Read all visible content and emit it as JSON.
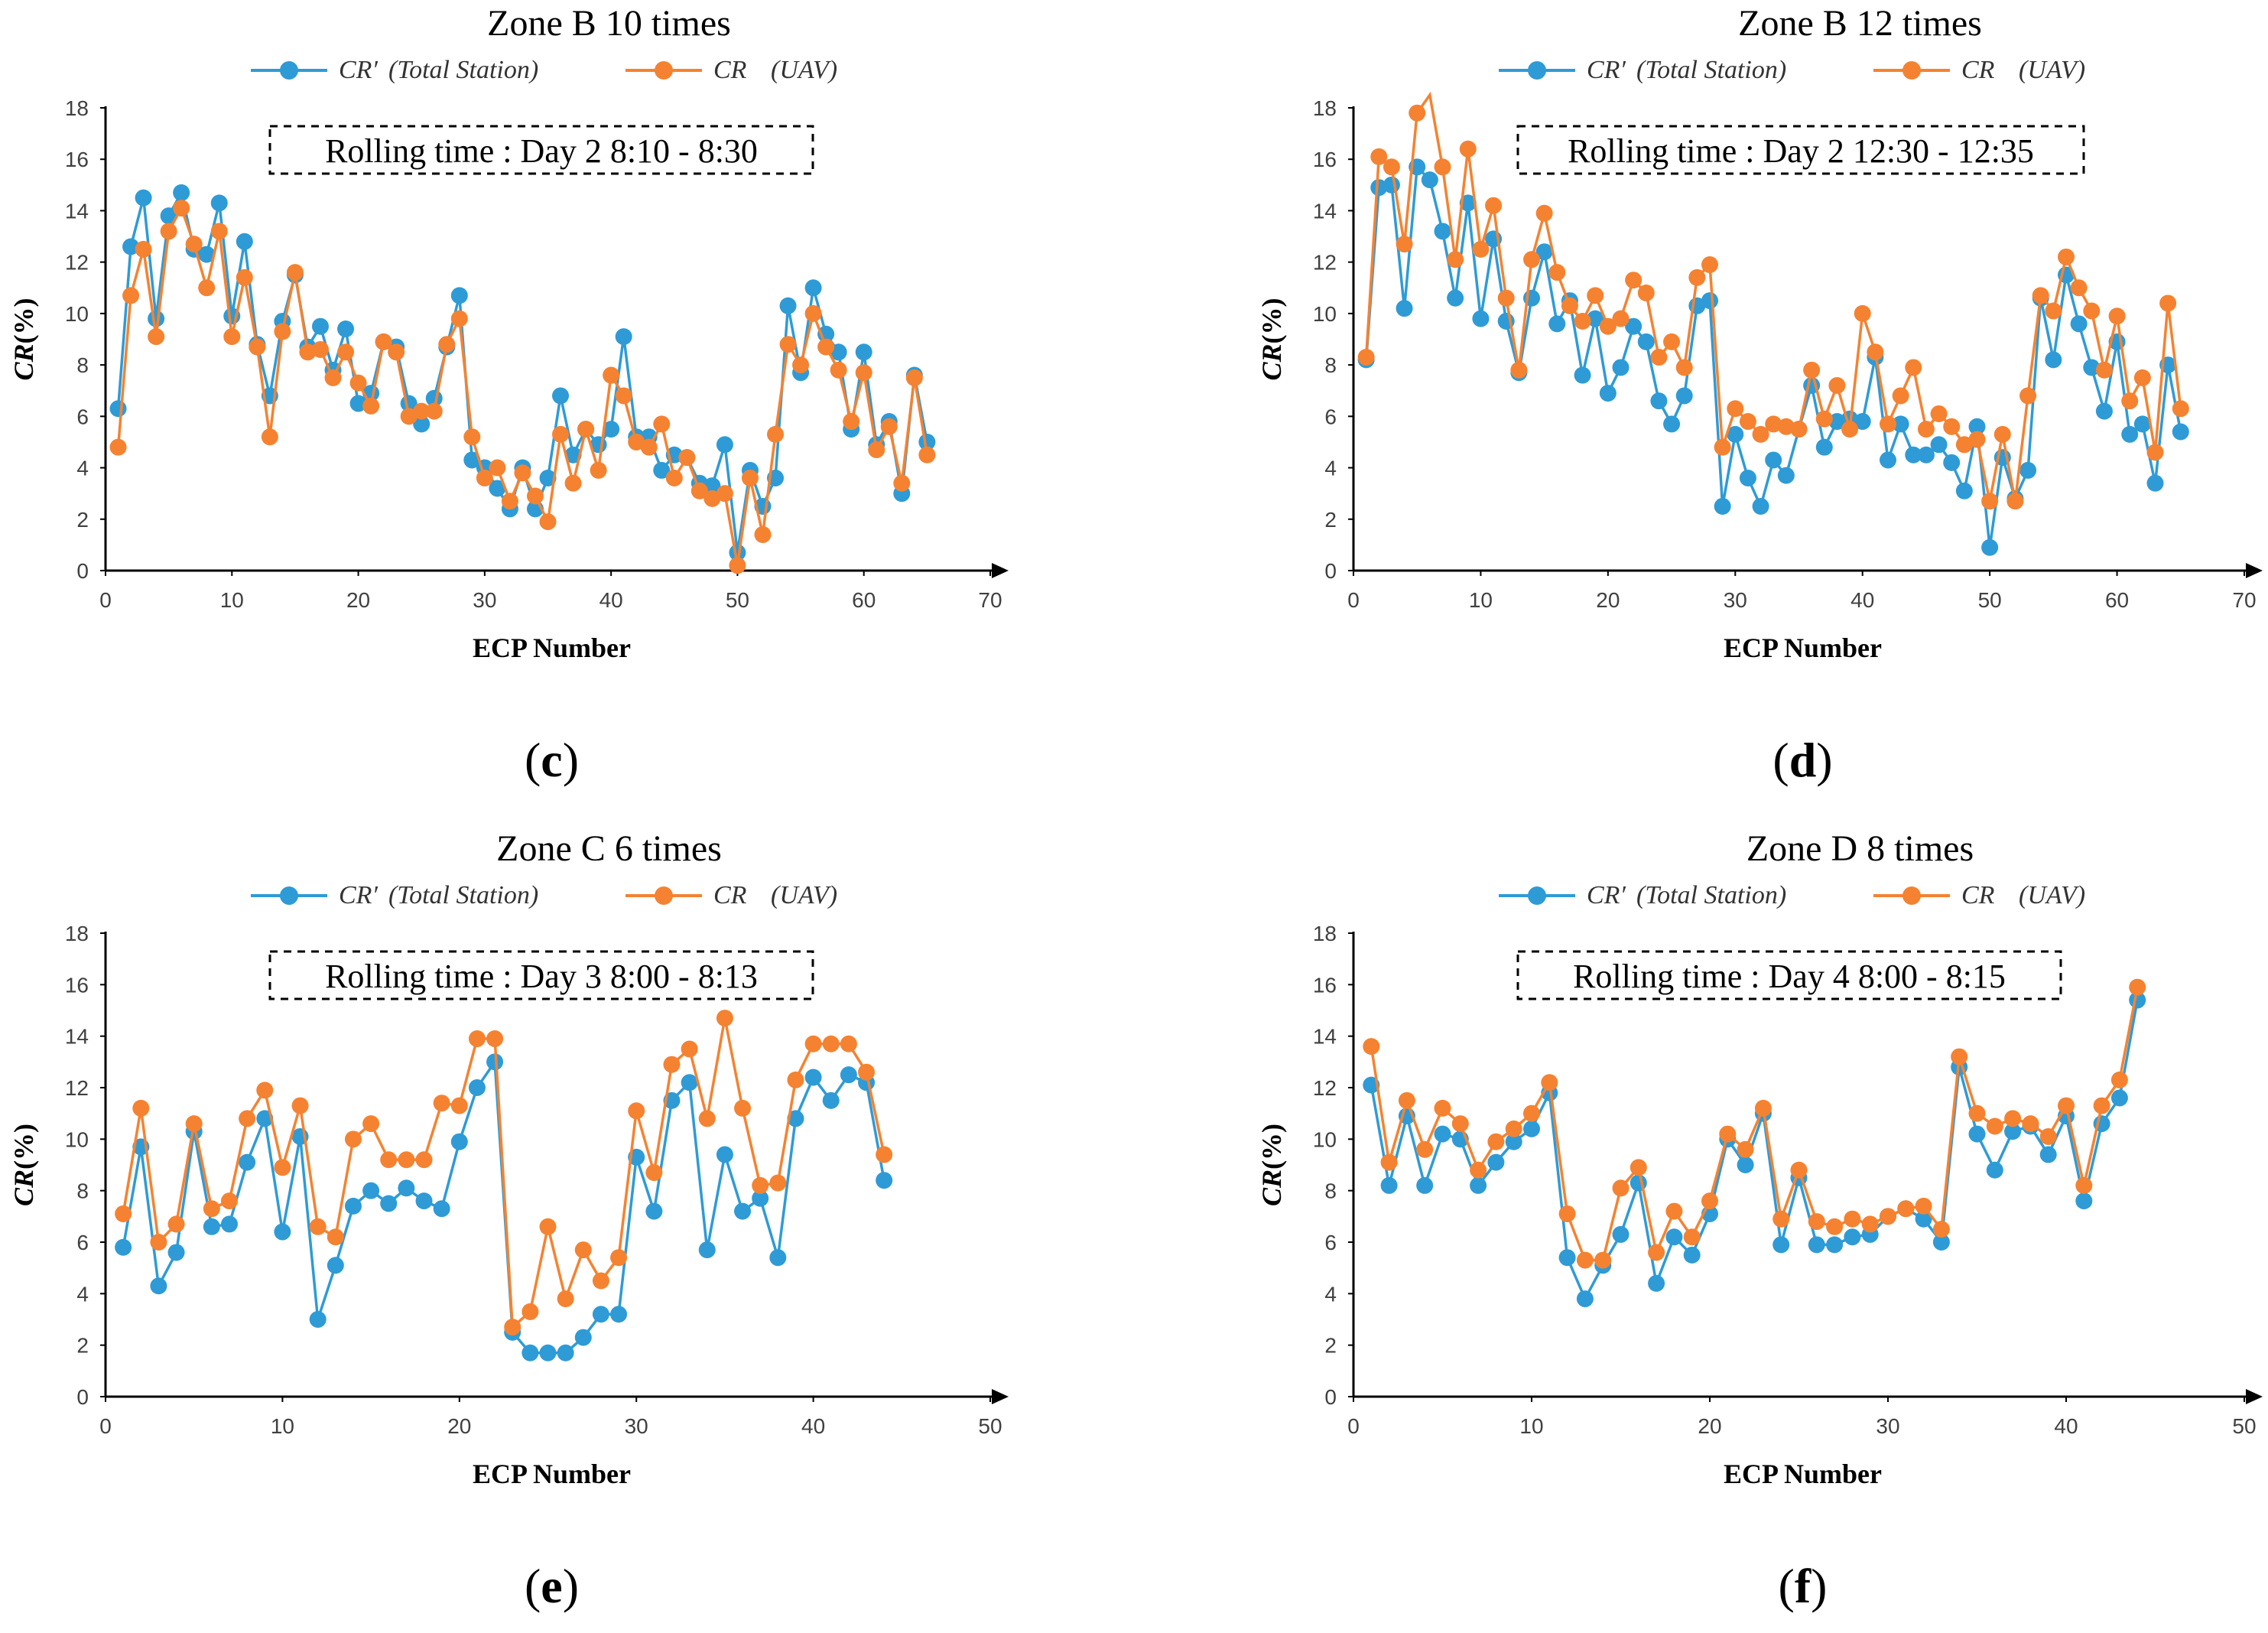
{
  "colors": {
    "total_station": "#2e9bd6",
    "uav": "#f58231",
    "axis": "#000000"
  },
  "chart_data": [
    {
      "type": "line",
      "panel": "(c)",
      "title": "Zone B 10 times",
      "box_text": "Rolling time : Day 2 8:10 - 8:30",
      "xlabel": "ECP Number",
      "ylabel": "CR(%)",
      "xlim": [
        0,
        70
      ],
      "ylim": [
        0,
        18
      ],
      "xticks": [
        0,
        10,
        20,
        30,
        40,
        50,
        60,
        70
      ],
      "yticks": [
        0,
        2,
        4,
        6,
        8,
        10,
        12,
        14,
        16,
        18
      ],
      "series": [
        {
          "name": "CR′ (Total Station)",
          "color": "#2e9bd6",
          "values": [
            6.3,
            12.6,
            14.5,
            9.8,
            13.8,
            14.7,
            12.5,
            12.3,
            14.3,
            9.9,
            12.8,
            8.8,
            6.8,
            9.7,
            11.5,
            8.7,
            9.5,
            7.8,
            9.4,
            6.5,
            6.9,
            8.9,
            8.7,
            6.5,
            5.7,
            6.7,
            8.7,
            10.7,
            4.3,
            4.0,
            3.2,
            2.4,
            4.0,
            2.4,
            3.6,
            6.8,
            4.5,
            5.5,
            4.9,
            5.5,
            9.1,
            5.2,
            5.2,
            3.9,
            4.5,
            4.4,
            3.4,
            3.3,
            4.9,
            0.7,
            3.9,
            2.5,
            3.6,
            10.3,
            7.7,
            11.0,
            9.2,
            8.5,
            5.5,
            8.5,
            4.9,
            5.8,
            3.0,
            7.6,
            5.0
          ]
        },
        {
          "name": "CR (UAV)",
          "color": "#f58231",
          "values": [
            4.8,
            10.7,
            12.5,
            9.1,
            13.2,
            14.1,
            12.7,
            11.0,
            13.2,
            9.1,
            11.4,
            8.7,
            5.2,
            9.3,
            11.6,
            8.5,
            8.6,
            7.5,
            8.5,
            7.3,
            6.4,
            8.9,
            8.5,
            6.0,
            6.2,
            6.2,
            8.8,
            9.8,
            5.2,
            3.6,
            4.0,
            2.7,
            3.8,
            2.9,
            1.9,
            5.3,
            3.4,
            5.5,
            3.9,
            7.6,
            6.8,
            5.0,
            4.8,
            5.7,
            3.6,
            4.4,
            3.1,
            2.8,
            3.0,
            0.2,
            3.6,
            1.4,
            5.3,
            8.8,
            8.0,
            10.0,
            8.7,
            7.8,
            5.8,
            7.7,
            4.7,
            5.6,
            3.4,
            7.5,
            4.5
          ]
        }
      ],
      "legend": [
        "CR′",
        "(Total Station)",
        "CR",
        "(UAV)"
      ]
    },
    {
      "type": "line",
      "panel": "(d)",
      "title": "Zone B 12 times",
      "box_text": "Rolling time : Day 2 12:30 - 12:35",
      "xlabel": "ECP Number",
      "ylabel": "CR(%)",
      "xlim": [
        0,
        70
      ],
      "ylim": [
        0,
        18
      ],
      "xticks": [
        0,
        10,
        20,
        30,
        40,
        50,
        60,
        70
      ],
      "yticks": [
        0,
        2,
        4,
        6,
        8,
        10,
        12,
        14,
        16,
        18
      ],
      "series": [
        {
          "name": "CR′ (Total Station)",
          "color": "#2e9bd6",
          "values": [
            8.2,
            14.9,
            15.0,
            10.2,
            15.7,
            15.2,
            13.2,
            10.6,
            14.3,
            9.8,
            12.9,
            9.7,
            7.7,
            10.6,
            12.4,
            9.6,
            10.5,
            7.6,
            9.8,
            6.9,
            7.9,
            9.5,
            8.9,
            6.6,
            5.7,
            6.8,
            10.3,
            10.5,
            2.5,
            5.3,
            3.6,
            2.5,
            4.3,
            3.7,
            5.5,
            7.2,
            4.8,
            5.8,
            5.9,
            5.8,
            8.3,
            4.3,
            5.7,
            4.5,
            4.5,
            4.9,
            4.2,
            3.1,
            5.6,
            0.9,
            4.4,
            2.8,
            3.9,
            10.6,
            8.2,
            11.5,
            9.6,
            7.9,
            6.2,
            8.9,
            5.3,
            5.7,
            3.4,
            8.0,
            5.4
          ]
        },
        {
          "name": "CR (UAV)",
          "color": "#f58231",
          "values": [
            8.3,
            16.1,
            15.7,
            12.7,
            17.8,
            18.5,
            15.7,
            12.1,
            16.4,
            12.5,
            14.2,
            10.6,
            7.8,
            12.1,
            13.9,
            11.6,
            10.3,
            9.7,
            10.7,
            9.5,
            9.8,
            11.3,
            10.8,
            8.3,
            8.9,
            7.9,
            11.4,
            11.9,
            4.8,
            6.3,
            5.8,
            5.3,
            5.7,
            5.6,
            5.5,
            7.8,
            5.9,
            7.2,
            5.5,
            10.0,
            8.5,
            5.7,
            6.8,
            7.9,
            5.5,
            6.1,
            5.6,
            4.9,
            5.1,
            2.7,
            5.3,
            2.7,
            6.8,
            10.7,
            10.1,
            12.2,
            11.0,
            10.1,
            7.8,
            9.9,
            6.6,
            7.5,
            4.6,
            10.4,
            6.3
          ]
        }
      ],
      "legend": [
        "CR′",
        "(Total Station)",
        "CR",
        "(UAV)"
      ]
    },
    {
      "type": "line",
      "panel": "(e)",
      "title": "Zone C 6 times",
      "box_text": "Rolling time : Day 3 8:00 - 8:13",
      "xlabel": "ECP Number",
      "ylabel": "CR(%)",
      "xlim": [
        0,
        50
      ],
      "ylim": [
        0,
        18
      ],
      "xticks": [
        0,
        10,
        20,
        30,
        40,
        50
      ],
      "yticks": [
        0,
        2,
        4,
        6,
        8,
        10,
        12,
        14,
        16,
        18
      ],
      "series": [
        {
          "name": "CR′ (Total Station)",
          "color": "#2e9bd6",
          "values": [
            5.8,
            9.7,
            4.3,
            5.6,
            10.3,
            6.6,
            6.7,
            9.1,
            10.8,
            6.4,
            10.1,
            3.0,
            5.1,
            7.4,
            8.0,
            7.5,
            8.1,
            7.6,
            7.3,
            9.9,
            12.0,
            13.0,
            2.5,
            1.7,
            1.7,
            1.7,
            2.3,
            3.2,
            3.2,
            9.3,
            7.2,
            11.5,
            12.2,
            5.7,
            9.4,
            7.2,
            7.7,
            5.4,
            10.8,
            12.4,
            11.5,
            12.5,
            12.2,
            8.4
          ]
        },
        {
          "name": "CR (UAV)",
          "color": "#f58231",
          "values": [
            7.1,
            11.2,
            6.0,
            6.7,
            10.6,
            7.3,
            7.6,
            10.8,
            11.9,
            8.9,
            11.3,
            6.6,
            6.2,
            10.0,
            10.6,
            9.2,
            9.2,
            9.2,
            11.4,
            11.3,
            13.9,
            13.9,
            2.7,
            3.3,
            6.6,
            3.8,
            5.7,
            4.5,
            5.4,
            11.1,
            8.7,
            12.9,
            13.5,
            10.8,
            14.7,
            11.2,
            8.2,
            8.3,
            12.3,
            13.7,
            13.7,
            13.7,
            12.6,
            9.4
          ]
        }
      ],
      "legend": [
        "CR′",
        "(Total Station)",
        "CR",
        "(UAV)"
      ]
    },
    {
      "type": "line",
      "panel": "(f)",
      "title": "Zone D 8 times",
      "box_text": "Rolling time : Day 4 8:00 - 8:15",
      "xlabel": "ECP Number",
      "ylabel": "CR(%)",
      "xlim": [
        0,
        50
      ],
      "ylim": [
        0,
        18
      ],
      "xticks": [
        0,
        10,
        20,
        30,
        40,
        50
      ],
      "yticks": [
        0,
        2,
        4,
        6,
        8,
        10,
        12,
        14,
        16,
        18
      ],
      "series": [
        {
          "name": "CR′ (Total Station)",
          "color": "#2e9bd6",
          "values": [
            12.1,
            8.2,
            10.9,
            8.2,
            10.2,
            10.0,
            8.2,
            9.1,
            9.9,
            10.4,
            11.8,
            5.4,
            3.8,
            5.1,
            6.3,
            8.3,
            4.4,
            6.2,
            5.5,
            7.1,
            10.0,
            9.0,
            11.0,
            5.9,
            8.5,
            5.9,
            5.9,
            6.2,
            6.3,
            7.0,
            7.3,
            6.9,
            6.0,
            12.8,
            10.2,
            8.8,
            10.3,
            10.5,
            9.4,
            10.9,
            7.6,
            10.6,
            11.6,
            15.4
          ]
        },
        {
          "name": "CR (UAV)",
          "color": "#f58231",
          "values": [
            13.6,
            9.1,
            11.5,
            9.6,
            11.2,
            10.6,
            8.8,
            9.9,
            10.4,
            11.0,
            12.2,
            7.1,
            5.3,
            5.3,
            8.1,
            8.9,
            5.6,
            7.2,
            6.2,
            7.6,
            10.2,
            9.6,
            11.2,
            6.9,
            8.8,
            6.8,
            6.6,
            6.9,
            6.7,
            7.0,
            7.3,
            7.4,
            6.5,
            13.2,
            11.0,
            10.5,
            10.8,
            10.6,
            10.1,
            11.3,
            8.2,
            11.3,
            12.3,
            15.9
          ]
        }
      ],
      "legend": [
        "CR′",
        "(Total Station)",
        "CR",
        "(UAV)"
      ]
    }
  ]
}
